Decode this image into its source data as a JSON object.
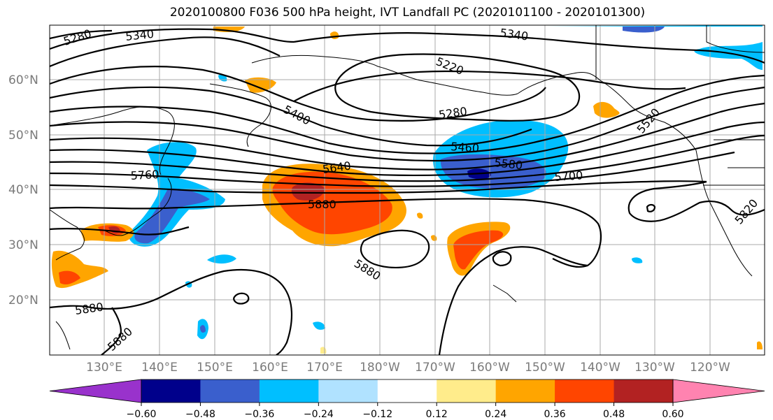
{
  "title": "2020100800 F036 500 hPa height, IVT Landfall PC (2020101100 - 2020101300)",
  "lat_labels": [
    "60°N",
    "50°N",
    "40°N",
    "30°N",
    "20°N"
  ],
  "lon_labels": [
    "130°E",
    "140°E",
    "150°E",
    "160°E",
    "170°E",
    "180°W",
    "170°W",
    "160°W",
    "150°W",
    "140°W",
    "130°W",
    "120°W"
  ],
  "contour_labels": [
    "5280",
    "5340",
    "5340",
    "5220",
    "5280",
    "5400",
    "5460",
    "5580",
    "5640",
    "5700",
    "5760",
    "5880",
    "5880",
    "5880",
    "5880",
    "5520",
    "5820"
  ],
  "colorbar": {
    "ticks": [
      "−0.60",
      "−0.48",
      "−0.36",
      "−0.24",
      "−0.12",
      "0.12",
      "0.24",
      "0.36",
      "0.48",
      "0.60"
    ],
    "colors": [
      "#9932cc",
      "#00008b",
      "#3a5fcd",
      "#00bfff",
      "#b0e2ff",
      "#ffffff",
      "#ffec8b",
      "#ffa500",
      "#ff4500",
      "#b22222",
      "#ff83b0"
    ]
  }
}
